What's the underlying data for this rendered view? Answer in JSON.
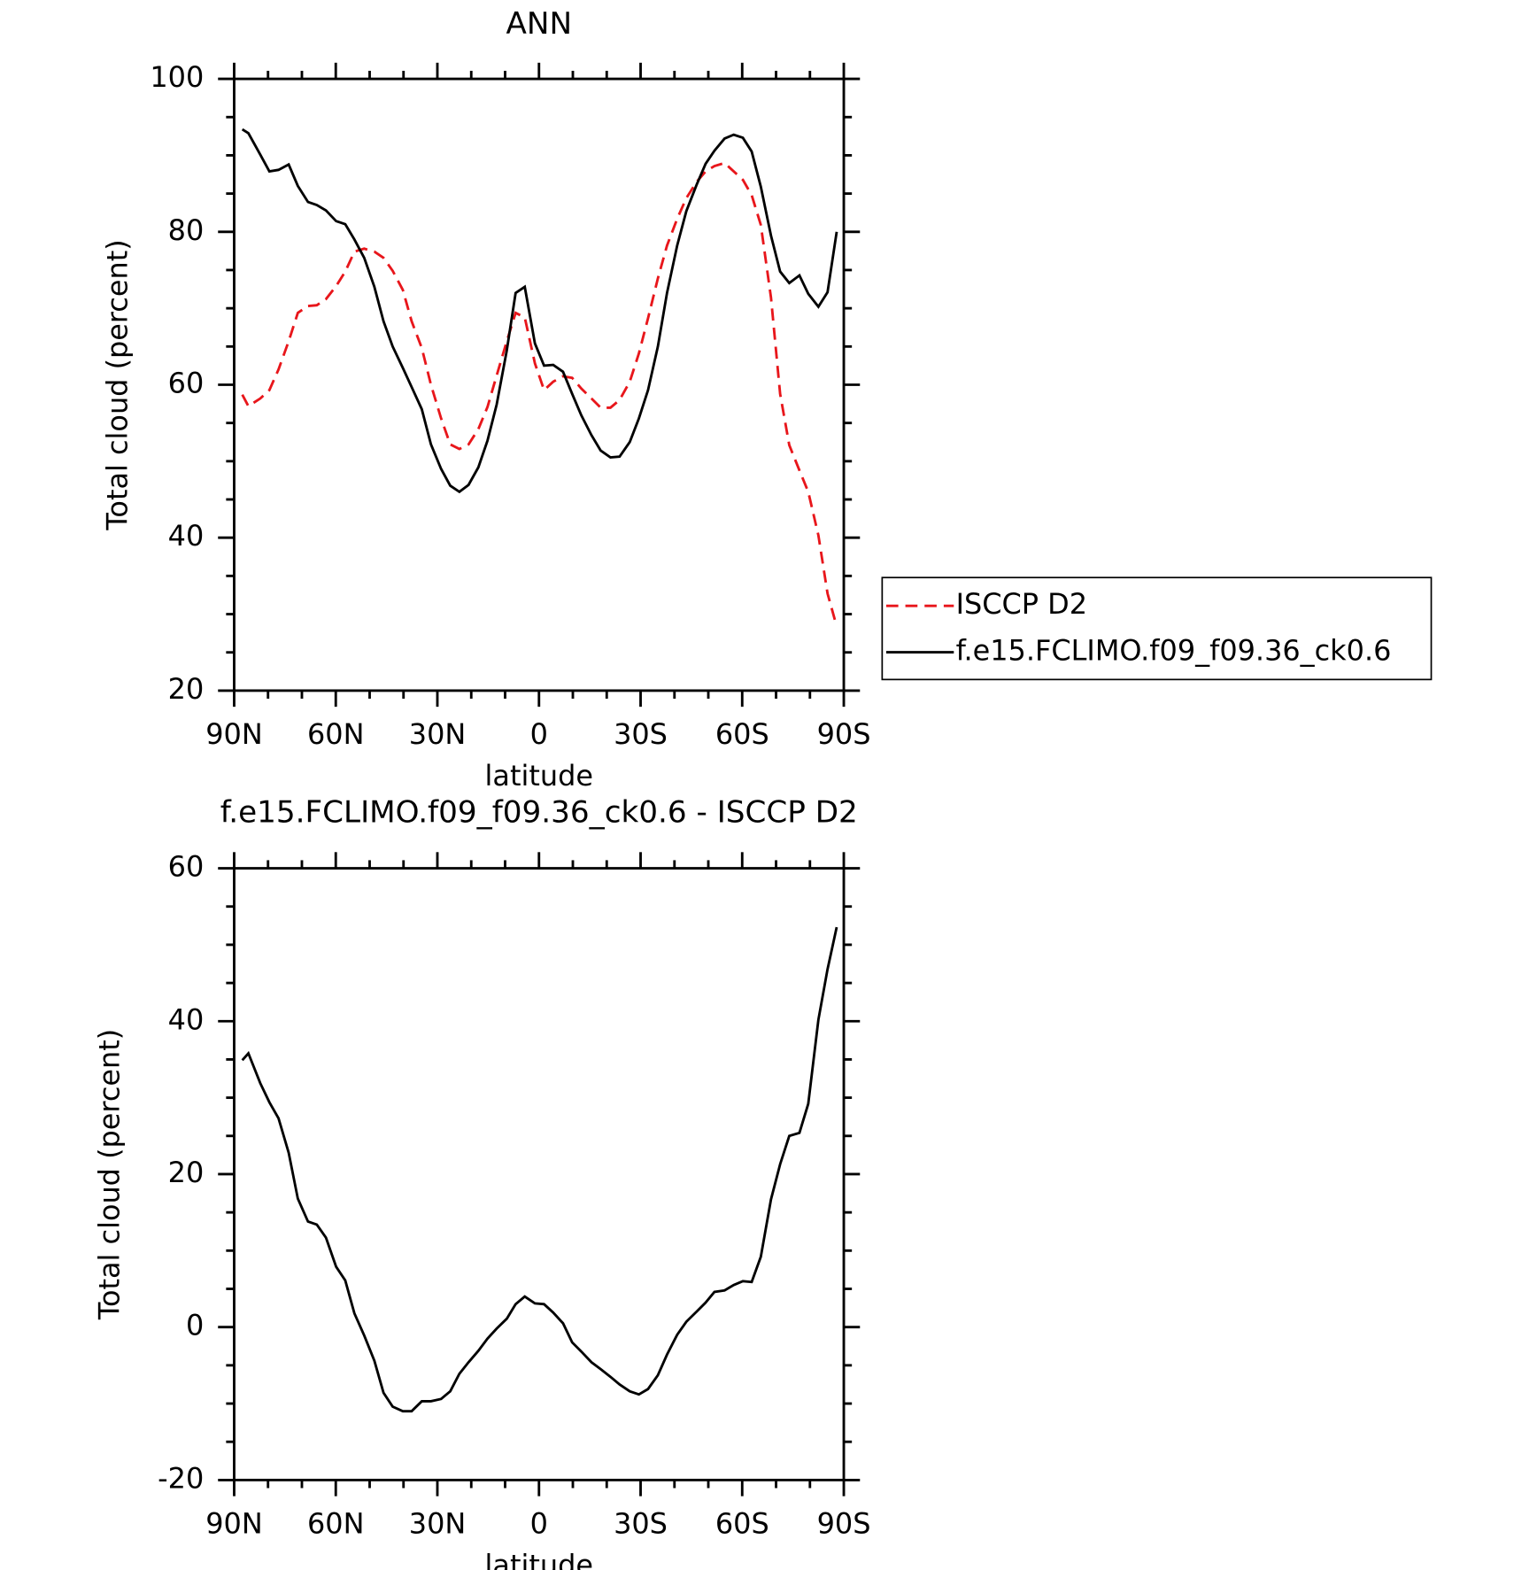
{
  "chart_data": [
    {
      "type": "line",
      "title": "ANN",
      "x_label": "latitude",
      "y_label": "Total cloud (percent)",
      "x": [
        87.6,
        85.8,
        82.3,
        79.6,
        76.9,
        73.9,
        71.2,
        68.2,
        65.6,
        62.9,
        59.9,
        57.2,
        54.5,
        51.6,
        48.6,
        45.9,
        43.2,
        40.2,
        37.6,
        34.6,
        31.9,
        28.9,
        26.2,
        23.5,
        20.8,
        17.9,
        15.2,
        12.5,
        9.5,
        6.9,
        4.2,
        1.2,
        -1.5,
        -4.2,
        -7.1,
        -9.8,
        -12.5,
        -15.5,
        -18.2,
        -21.1,
        -23.8,
        -26.8,
        -29.5,
        -32.2,
        -35.1,
        -37.8,
        -40.8,
        -43.5,
        -46.5,
        -49.2,
        -51.8,
        -54.8,
        -57.5,
        -60.2,
        -62.8,
        -65.5,
        -68.5,
        -71.2,
        -73.9,
        -76.9,
        -79.5,
        -82.5,
        -85.2,
        -87.9
      ],
      "series": [
        {
          "name": "ISCCP D2",
          "color": "#e8161b",
          "dash": true,
          "values": [
            58.7,
            57.2,
            58.2,
            59.3,
            62,
            65.7,
            69.4,
            70.3,
            70.4,
            71.2,
            72.9,
            74.8,
            77.4,
            77.8,
            77.4,
            76.6,
            74.9,
            72.4,
            68.3,
            64.8,
            60,
            55.6,
            52.2,
            51.6,
            52.2,
            54.2,
            57.1,
            61.2,
            65.7,
            69.4,
            68.8,
            62.8,
            59.3,
            60.4,
            61.1,
            60.9,
            59.5,
            58.2,
            57,
            57,
            58,
            60.4,
            64.1,
            68.7,
            73.9,
            78.2,
            81.7,
            84.4,
            86.5,
            87.9,
            88.6,
            89,
            87.9,
            86.8,
            84.8,
            80.9,
            71.4,
            58.8,
            52.1,
            48.8,
            46,
            40.3,
            32.7,
            28.4
          ]
        },
        {
          "name": "f.e15.FCLIMO.f09_f09.36_ck0.6",
          "color": "#000000",
          "dash": false,
          "values": [
            93.4,
            92.9,
            90.1,
            87.9,
            88.1,
            88.8,
            86,
            83.9,
            83.5,
            82.8,
            81.4,
            81,
            79,
            76.6,
            72.8,
            68.3,
            65,
            62.2,
            59.7,
            56.8,
            52.2,
            49,
            46.8,
            46,
            46.9,
            49.2,
            52.7,
            57.4,
            64.5,
            72,
            72.8,
            65.4,
            62.5,
            62.6,
            61.7,
            58.8,
            56,
            53.4,
            51.4,
            50.5,
            50.6,
            52.5,
            55.6,
            59.3,
            65,
            72,
            78.2,
            82.7,
            86.1,
            88.9,
            90.6,
            92.2,
            92.7,
            92.3,
            90.5,
            85.9,
            79.5,
            74.8,
            73.3,
            74.3,
            71.9,
            70.2,
            72.1,
            80
          ]
        }
      ],
      "xlim": [
        90,
        -90
      ],
      "ylim": [
        20,
        100
      ],
      "xticks": [
        {
          "value": 90,
          "label": "90N"
        },
        {
          "value": 60,
          "label": "60N"
        },
        {
          "value": 30,
          "label": "30N"
        },
        0,
        {
          "value": -30,
          "label": "30S"
        },
        {
          "value": -60,
          "label": "60S"
        },
        {
          "value": -90,
          "label": "90S"
        }
      ],
      "yticks": [
        20,
        40,
        60,
        80,
        100
      ],
      "legend": "right"
    },
    {
      "type": "line",
      "title": "f.e15.FCLIMO.f09_f09.36_ck0.6 - ISCCP D2",
      "x_label": "latitude",
      "y_label": "Total cloud (percent)",
      "x": [
        87.6,
        85.8,
        82.3,
        79.6,
        76.9,
        73.9,
        71.2,
        68.2,
        65.6,
        62.9,
        59.9,
        57.2,
        54.5,
        51.6,
        48.6,
        45.9,
        43.2,
        40.2,
        37.6,
        34.6,
        31.9,
        28.9,
        26.2,
        23.5,
        20.8,
        17.9,
        15.2,
        12.5,
        9.5,
        6.9,
        4.2,
        1.2,
        -1.5,
        -4.2,
        -7.1,
        -9.8,
        -12.5,
        -15.5,
        -18.2,
        -21.1,
        -23.8,
        -26.8,
        -29.5,
        -32.2,
        -35.1,
        -37.8,
        -40.8,
        -43.5,
        -46.5,
        -49.2,
        -51.8,
        -54.8,
        -57.5,
        -60.2,
        -62.8,
        -65.5,
        -68.5,
        -71.2,
        -73.9,
        -76.9,
        -79.5,
        -82.5,
        -85.2,
        -87.9
      ],
      "series": [
        {
          "name": "f.e15.FCLIMO.f09_f09.36_ck0.6 - ISCCP D2",
          "color": "#000000",
          "dash": false,
          "values": [
            34.9,
            35.8,
            31.9,
            29.4,
            27.3,
            22.8,
            16.8,
            13.8,
            13.4,
            11.7,
            7.9,
            6.1,
            1.8,
            -1.1,
            -4.4,
            -8.6,
            -10.4,
            -11,
            -11,
            -9.7,
            -9.7,
            -9.4,
            -8.4,
            -6.1,
            -4.6,
            -3.1,
            -1.5,
            -0.2,
            1.1,
            3,
            4,
            3.1,
            3,
            1.9,
            0.5,
            -2,
            -3.2,
            -4.6,
            -5.5,
            -6.5,
            -7.5,
            -8.4,
            -8.8,
            -8.1,
            -6.3,
            -3.6,
            -1,
            0.7,
            2,
            3.2,
            4.6,
            4.8,
            5.5,
            6,
            5.9,
            9.2,
            16.7,
            21.3,
            25,
            25.4,
            29.2,
            40.2,
            46.8,
            52.3
          ]
        }
      ],
      "xlim": [
        90,
        -90
      ],
      "ylim": [
        -20,
        60
      ],
      "xticks": [
        {
          "value": 90,
          "label": "90N"
        },
        {
          "value": 60,
          "label": "60N"
        },
        {
          "value": 30,
          "label": "30N"
        },
        0,
        {
          "value": -30,
          "label": "30S"
        },
        {
          "value": -60,
          "label": "60S"
        },
        {
          "value": -90,
          "label": "90S"
        }
      ],
      "yticks": [
        -20,
        0,
        20,
        40,
        60
      ]
    }
  ]
}
